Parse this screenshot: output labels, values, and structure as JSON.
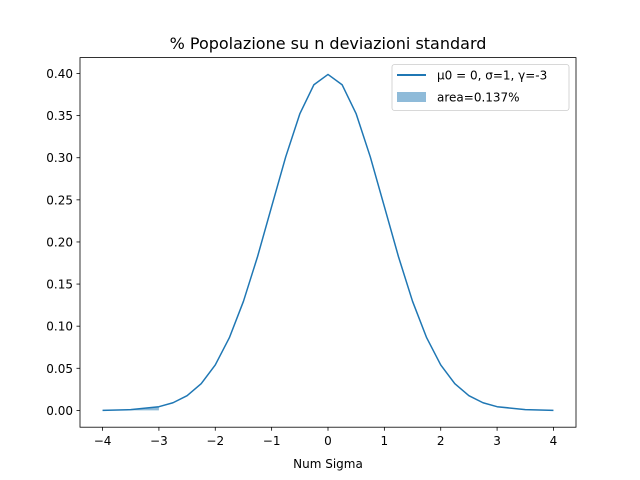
{
  "chart_data": {
    "type": "line",
    "title": "% Popolazione su n deviazioni standard",
    "xlabel": "Num Sigma",
    "ylabel": "",
    "xlim": [
      -4.4,
      4.4
    ],
    "ylim": [
      -0.019947,
      0.418891
    ],
    "xticks": [
      -4,
      -3,
      -2,
      -1,
      0,
      1,
      2,
      3,
      4
    ],
    "xtick_labels": [
      "−4",
      "−3",
      "−2",
      "−1",
      "0",
      "1",
      "2",
      "3",
      "4"
    ],
    "yticks": [
      0.0,
      0.05,
      0.1,
      0.15,
      0.2,
      0.25,
      0.3,
      0.35,
      0.4
    ],
    "ytick_labels": [
      "0.00",
      "0.05",
      "0.10",
      "0.15",
      "0.20",
      "0.25",
      "0.30",
      "0.35",
      "0.40"
    ],
    "grid": false,
    "legend_position": "top-right",
    "series": [
      {
        "name": "μ0 = 0, σ=1, γ=-3",
        "type": "line",
        "color": "#1f77b4",
        "x": [
          -4.0,
          -3.5,
          -3.0,
          -2.75,
          -2.5,
          -2.25,
          -2.0,
          -1.75,
          -1.5,
          -1.25,
          -1.0,
          -0.75,
          -0.5,
          -0.25,
          0.0,
          0.25,
          0.5,
          0.75,
          1.0,
          1.25,
          1.5,
          1.75,
          2.0,
          2.25,
          2.5,
          2.75,
          3.0,
          3.5,
          4.0
        ],
        "y": [
          0.0001,
          0.0009,
          0.0044,
          0.0091,
          0.0175,
          0.0317,
          0.054,
          0.0863,
          0.1295,
          0.1826,
          0.242,
          0.3011,
          0.3521,
          0.3867,
          0.3989,
          0.3867,
          0.3521,
          0.3011,
          0.242,
          0.1826,
          0.1295,
          0.0863,
          0.054,
          0.0317,
          0.0175,
          0.0091,
          0.0044,
          0.0009,
          0.0001
        ]
      },
      {
        "name": "area=0.137%",
        "type": "area",
        "color": "#1f77b4",
        "opacity": 0.5,
        "x": [
          -4.0,
          -3.75,
          -3.5,
          -3.25,
          -3.0
        ],
        "y": [
          0.0001,
          0.0004,
          0.0009,
          0.002,
          0.0044
        ]
      }
    ]
  }
}
